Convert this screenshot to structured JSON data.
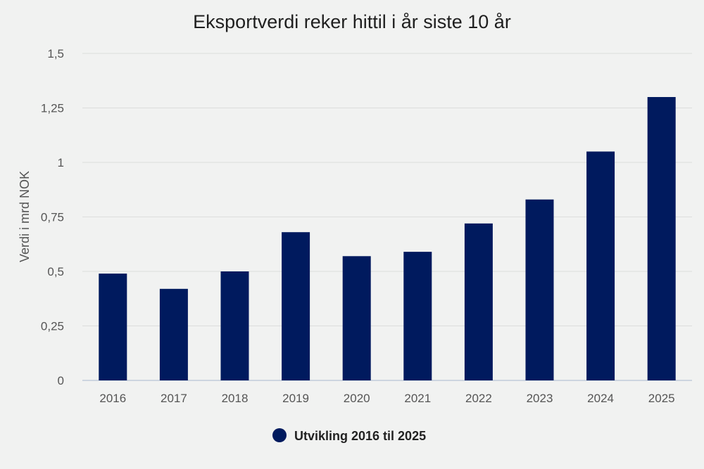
{
  "chart_data": {
    "type": "bar",
    "title": "Eksportverdi reker hittil i år siste 10 år",
    "xlabel": "",
    "ylabel": "Verdi i mrd NOK",
    "categories": [
      "2016",
      "2017",
      "2018",
      "2019",
      "2020",
      "2021",
      "2022",
      "2023",
      "2024",
      "2025"
    ],
    "series": [
      {
        "name": "Utvikling 2016 til 2025",
        "values": [
          0.49,
          0.42,
          0.5,
          0.68,
          0.57,
          0.59,
          0.72,
          0.83,
          1.05,
          1.3
        ],
        "color": "#001a5e"
      }
    ],
    "ylim": [
      0,
      1.5
    ],
    "yticks": [
      {
        "value": 0,
        "label": "0"
      },
      {
        "value": 0.25,
        "label": "0,25"
      },
      {
        "value": 0.5,
        "label": "0,5"
      },
      {
        "value": 0.75,
        "label": "0,75"
      },
      {
        "value": 1,
        "label": "1"
      },
      {
        "value": 1.25,
        "label": "1,25"
      },
      {
        "value": 1.5,
        "label": "1,5"
      }
    ],
    "grid": true,
    "legend_position": "bottom"
  },
  "colors": {
    "background": "#f1f2f1",
    "bar": "#001a5e",
    "grid": "#dcdddc"
  }
}
